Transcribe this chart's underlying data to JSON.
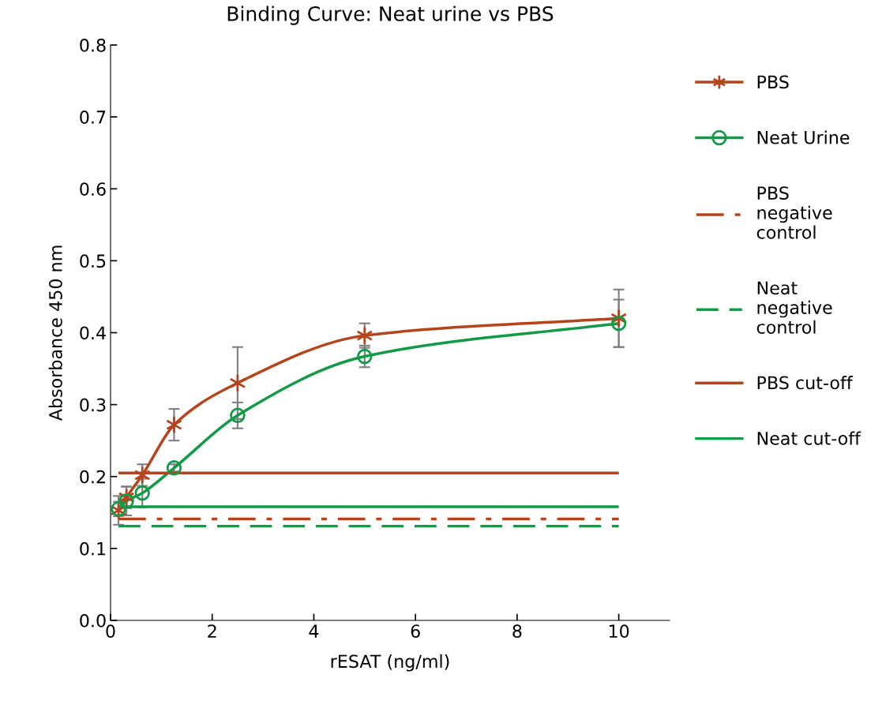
{
  "chart_data": {
    "type": "line",
    "title": "Binding Curve: Neat urine vs PBS",
    "xlabel": "rESAT (ng/ml)",
    "ylabel": "Absorbance 450 nm",
    "xlim": [
      0,
      11
    ],
    "xticks": [
      0,
      2,
      4,
      6,
      8,
      10
    ],
    "ylim": [
      0,
      0.8
    ],
    "yticks": [
      {
        "value": 0,
        "label": "0.0"
      },
      0.1,
      0.2,
      0.3,
      0.4,
      0.5,
      0.6,
      0.7,
      0.8
    ],
    "grid": false,
    "legend": "right",
    "line_style": "solid",
    "series": [
      {
        "name": "PBS",
        "color": "#b5441c",
        "marker": "cross",
        "x": [
          0.156,
          0.3125,
          0.625,
          1.25,
          2.5,
          5,
          10
        ],
        "values": [
          0.153,
          0.171,
          0.202,
          0.272,
          0.33,
          0.396,
          0.42
        ],
        "errors": [
          0.02,
          0.015,
          0.015,
          0.022,
          0.05,
          0.017,
          0.04
        ]
      },
      {
        "name": "Neat Urine",
        "color": "#129a46",
        "marker": "circle",
        "x": [
          0.156,
          0.3125,
          0.625,
          1.25,
          2.5,
          5,
          10
        ],
        "values": [
          0.155,
          0.166,
          0.177,
          0.212,
          0.285,
          0.367,
          0.413
        ],
        "errors": [
          0.01,
          0.02,
          0.02,
          0.005,
          0.018,
          0.015,
          0.033
        ]
      },
      {
        "name": "PBS\nnegative\ncontrol",
        "color": "#b5441c",
        "marker": "none",
        "line_style": "dashdot",
        "x": [
          0.156,
          10
        ],
        "values": [
          0.141,
          0.141
        ]
      },
      {
        "name": "Neat\nnegative\ncontrol",
        "color": "#129a46",
        "marker": "none",
        "line_style": "dashed",
        "x": [
          0.156,
          10
        ],
        "values": [
          0.131,
          0.131
        ]
      },
      {
        "name": "PBS cut-off",
        "color": "#b5441c",
        "marker": "none",
        "x": [
          0.156,
          10
        ],
        "values": [
          0.205,
          0.205
        ]
      },
      {
        "name": "Neat cut-off",
        "color": "#129a46",
        "marker": "none",
        "x": [
          0.156,
          10
        ],
        "values": [
          0.158,
          0.158
        ]
      }
    ]
  }
}
